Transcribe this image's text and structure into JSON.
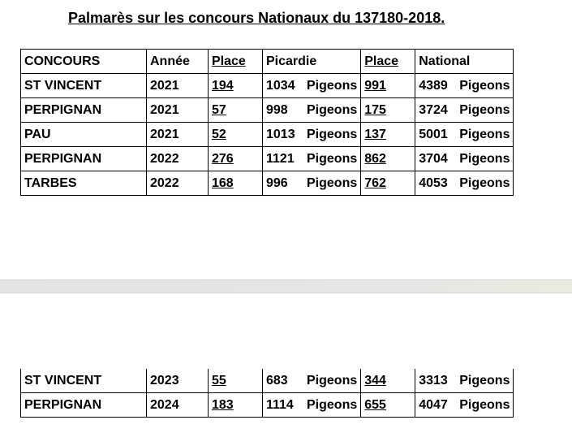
{
  "title": "Palmarès sur les concours Nationaux du 137180-2018.",
  "headers": {
    "concours": "CONCOURS",
    "annee": "Année",
    "place_regional": "Place",
    "picardie": "Picardie",
    "place_national": "Place",
    "national": "National"
  },
  "rows": [
    {
      "concours": "ST VINCENT",
      "annee": "2021",
      "place_regional": "194",
      "picardie_count": "1034",
      "picardie_unit": "Pigeons",
      "place_national": "991",
      "national_count": "4389",
      "national_unit": "Pigeons"
    },
    {
      "concours": "PERPIGNAN",
      "annee": "2021",
      "place_regional": "57",
      "picardie_count": "998",
      "picardie_unit": "Pigeons",
      "place_national": "175",
      "national_count": "3724",
      "national_unit": "Pigeons"
    },
    {
      "concours": "PAU",
      "annee": "2021",
      "place_regional": "52",
      "picardie_count": "1013",
      "picardie_unit": "Pigeons",
      "place_national": "137",
      "national_count": "5001",
      "national_unit": "Pigeons"
    },
    {
      "concours": "PERPIGNAN",
      "annee": "2022",
      "place_regional": "276",
      "picardie_count": "1121",
      "picardie_unit": "Pigeons",
      "place_national": "862",
      "national_count": "3704",
      "national_unit": "Pigeons"
    },
    {
      "concours": "TARBES",
      "annee": "2022",
      "place_regional": "168",
      "picardie_count": "996",
      "picardie_unit": "Pigeons",
      "place_national": "762",
      "national_count": "4053",
      "national_unit": "Pigeons"
    },
    {
      "concours": "ST VINCENT",
      "annee": "2023",
      "place_regional": "55",
      "picardie_count": "683",
      "picardie_unit": "Pigeons",
      "place_national": "344",
      "national_count": "3313",
      "national_unit": "Pigeons"
    },
    {
      "concours": "PERPIGNAN",
      "annee": "2024",
      "place_regional": "183",
      "picardie_count": "1114",
      "picardie_unit": "Pigeons",
      "place_national": "655",
      "national_count": "4047",
      "national_unit": "Pigeons"
    }
  ]
}
